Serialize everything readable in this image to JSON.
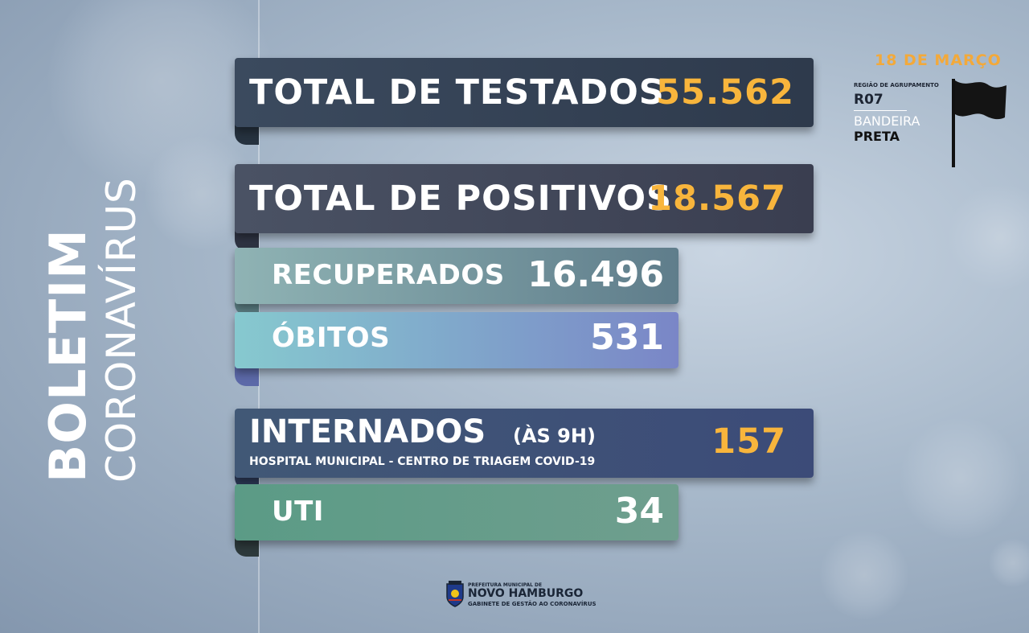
{
  "side_title": {
    "line1": "BOLETIM",
    "line2": "CORONAVÍRUS"
  },
  "stats": {
    "testados": {
      "label": "TOTAL DE TESTADOS",
      "value": "55.562"
    },
    "positivos": {
      "label": "TOTAL DE POSITIVOS",
      "value": "18.567"
    },
    "recuperados": {
      "label": "RECUPERADOS",
      "value": "16.496"
    },
    "obitos": {
      "label": "ÓBITOS",
      "value": "531"
    },
    "internados": {
      "label": "INTERNADOS",
      "label_suffix": "(ÀS 9H)",
      "subtitle": "HOSPITAL MUNICIPAL - CENTRO DE TRIAGEM COVID-19",
      "value": "157"
    },
    "uti": {
      "label": "UTI",
      "value": "34"
    }
  },
  "header_info": {
    "date": "18 DE MARÇO",
    "region_label": "REGIÃO DE AGRUPAMENTO",
    "region_code": "R07",
    "flag_word": "BANDEIRA",
    "flag_color": "PRETA"
  },
  "footer_logo": {
    "line1": "PREFEITURA MUNICIPAL DE",
    "line2": "NOVO HAMBURGO",
    "line3": "GABINETE DE GESTÃO AO CORONAVÍRUS"
  },
  "icons": {
    "flag": "black-flag-icon",
    "crest": "city-crest-icon"
  },
  "colors": {
    "accent": "#f8b53c",
    "flag": "#111111"
  }
}
